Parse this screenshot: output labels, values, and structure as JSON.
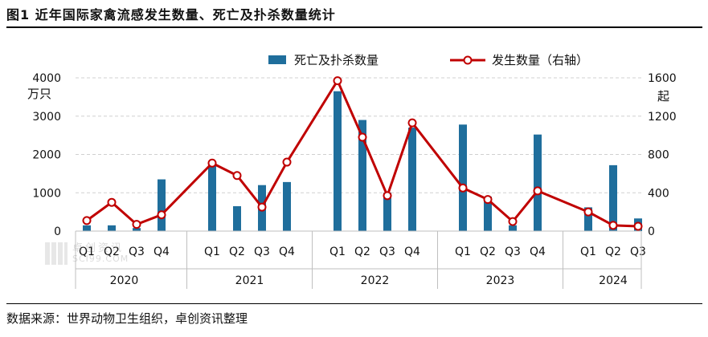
{
  "title": "图1 近年国际家禽流感发生数量、死亡及扑杀数量统计",
  "source": "数据来源：世界动物卫生组织，卓创资讯整理",
  "watermark": {
    "cn": "卓创资讯",
    "en": "SCI99.COM"
  },
  "chart_data": {
    "type": "bar",
    "groups": [
      {
        "year": "2020",
        "quarters": [
          "Q1",
          "Q2",
          "Q3",
          "Q4"
        ]
      },
      {
        "year": "2021",
        "quarters": [
          "Q1",
          "Q2",
          "Q3",
          "Q4"
        ]
      },
      {
        "year": "2022",
        "quarters": [
          "Q1",
          "Q2",
          "Q3",
          "Q4"
        ]
      },
      {
        "year": "2023",
        "quarters": [
          "Q1",
          "Q2",
          "Q3",
          "Q4"
        ]
      },
      {
        "year": "2024",
        "quarters": [
          "Q1",
          "Q2",
          "Q3"
        ]
      }
    ],
    "series": [
      {
        "name": "死亡及扑杀数量",
        "type": "bar",
        "axis": "left",
        "color": "#1f6e9c",
        "values": [
          150,
          150,
          80,
          1350,
          1800,
          650,
          1200,
          1280,
          3650,
          2900,
          1000,
          2700,
          2780,
          900,
          150,
          2520,
          620,
          1720,
          330
        ]
      },
      {
        "name": "发生数量（右轴）",
        "type": "line",
        "axis": "right",
        "color": "#c00000",
        "values": [
          110,
          300,
          70,
          170,
          710,
          580,
          250,
          720,
          1570,
          980,
          370,
          1130,
          450,
          330,
          100,
          420,
          200,
          60,
          50
        ]
      }
    ],
    "left_axis": {
      "unit": "万只",
      "min": 0,
      "max": 4000,
      "ticks": [
        0,
        1000,
        2000,
        3000,
        4000
      ]
    },
    "right_axis": {
      "unit": "起",
      "min": 0,
      "max": 1600,
      "ticks": [
        0,
        400,
        800,
        1200,
        1600
      ]
    },
    "legend_position": "top-center",
    "grid": true
  }
}
